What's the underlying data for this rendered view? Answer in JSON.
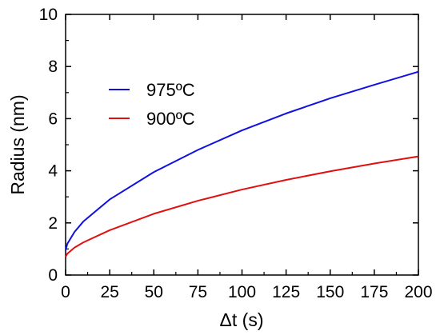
{
  "chart_data": {
    "type": "line",
    "xlabel": "Δt (s)",
    "ylabel": "Radius (nm)",
    "xlim": [
      0,
      200
    ],
    "ylim": [
      0,
      10
    ],
    "x_ticks": [
      0,
      25,
      50,
      75,
      100,
      125,
      150,
      175,
      200
    ],
    "y_ticks": [
      0,
      2,
      4,
      6,
      8,
      10
    ],
    "grid": false,
    "legend_position": "upper-left",
    "series": [
      {
        "name": "975ºC",
        "color": "#1010e0",
        "x": [
          0,
          1,
          5,
          10,
          25,
          50,
          75,
          100,
          125,
          150,
          175,
          200
        ],
        "y": [
          0.95,
          1.2,
          1.65,
          2.05,
          2.9,
          3.95,
          4.8,
          5.55,
          6.2,
          6.78,
          7.3,
          7.8
        ]
      },
      {
        "name": "900ºC",
        "color": "#e01010",
        "x": [
          0,
          1,
          5,
          10,
          25,
          50,
          75,
          100,
          125,
          150,
          175,
          200
        ],
        "y": [
          0.7,
          0.82,
          1.05,
          1.25,
          1.72,
          2.35,
          2.85,
          3.28,
          3.65,
          3.98,
          4.28,
          4.55
        ]
      }
    ]
  }
}
